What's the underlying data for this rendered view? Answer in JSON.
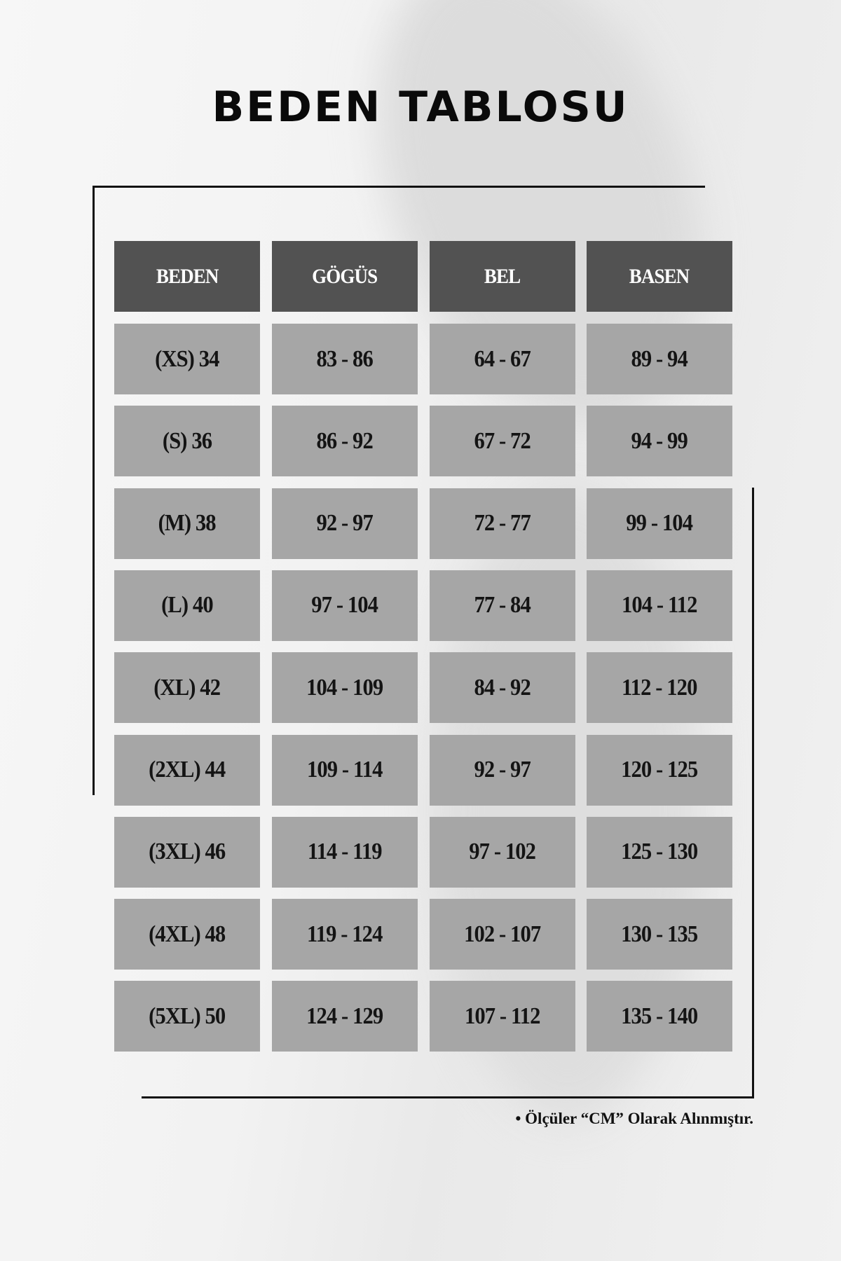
{
  "title": "BEDEN TABLOSU",
  "table": {
    "headers": [
      "BEDEN",
      "GÖGÜS",
      "BEL",
      "BASEN"
    ],
    "rows": [
      [
        "(XS) 34",
        "83 - 86",
        "64 - 67",
        "89 - 94"
      ],
      [
        "(S) 36",
        "86 - 92",
        "67 - 72",
        "94 - 99"
      ],
      [
        "(M) 38",
        "92 - 97",
        "72 - 77",
        "99 - 104"
      ],
      [
        "(L) 40",
        "97 - 104",
        "77 - 84",
        "104 - 112"
      ],
      [
        "(XL) 42",
        "104 - 109",
        "84 - 92",
        "112 - 120"
      ],
      [
        "(2XL) 44",
        "109 - 114",
        "92 - 97",
        "120 - 125"
      ],
      [
        "(3XL) 46",
        "114 - 119",
        "97 - 102",
        "125 - 130"
      ],
      [
        "(4XL) 48",
        "119 - 124",
        "102 - 107",
        "130 - 135"
      ],
      [
        "(5XL) 50",
        "124 - 129",
        "107 - 112",
        "135 - 140"
      ]
    ]
  },
  "note": "• Ölçüler “CM” Olarak Alınmıştır.",
  "colors": {
    "header_bg": "#525252",
    "cell_bg": "#a6a6a6",
    "text": "#141414"
  }
}
